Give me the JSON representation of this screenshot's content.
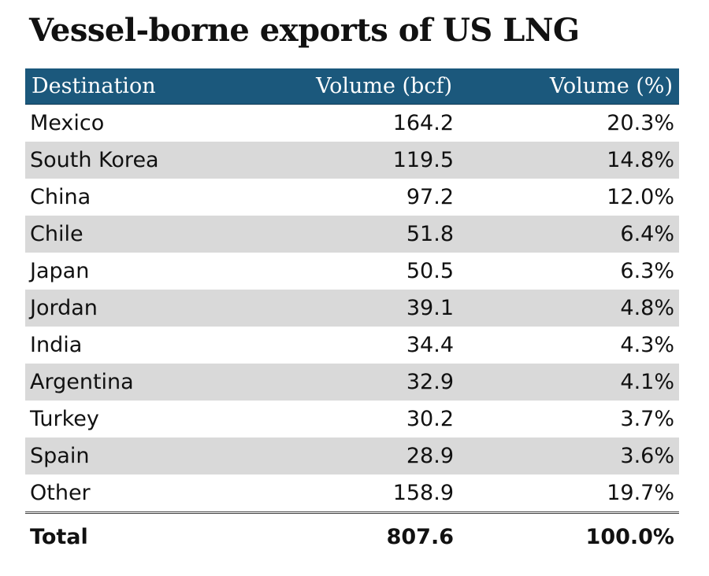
{
  "chart_data": {
    "type": "table",
    "title": "Vessel-borne exports of US LNG",
    "columns": [
      "Destination",
      "Volume (bcf)",
      "Volume (%)"
    ],
    "rows": [
      {
        "destination": "Mexico",
        "volume_bcf": "164.2",
        "volume_pct": "20.3%"
      },
      {
        "destination": "South Korea",
        "volume_bcf": "119.5",
        "volume_pct": "14.8%"
      },
      {
        "destination": "China",
        "volume_bcf": "97.2",
        "volume_pct": "12.0%"
      },
      {
        "destination": "Chile",
        "volume_bcf": "51.8",
        "volume_pct": "6.4%"
      },
      {
        "destination": "Japan",
        "volume_bcf": "50.5",
        "volume_pct": "6.3%"
      },
      {
        "destination": "Jordan",
        "volume_bcf": "39.1",
        "volume_pct": "4.8%"
      },
      {
        "destination": "India",
        "volume_bcf": "34.4",
        "volume_pct": "4.3%"
      },
      {
        "destination": "Argentina",
        "volume_bcf": "32.9",
        "volume_pct": "4.1%"
      },
      {
        "destination": "Turkey",
        "volume_bcf": "30.2",
        "volume_pct": "3.7%"
      },
      {
        "destination": "Spain",
        "volume_bcf": "28.9",
        "volume_pct": "3.6%"
      },
      {
        "destination": "Other",
        "volume_bcf": "158.9",
        "volume_pct": "19.7%"
      }
    ],
    "total": {
      "label": "Total",
      "volume_bcf": "807.6",
      "volume_pct": "100.0%"
    },
    "header_color": "#1b587c",
    "stripe_color": "#d9d9d9"
  }
}
